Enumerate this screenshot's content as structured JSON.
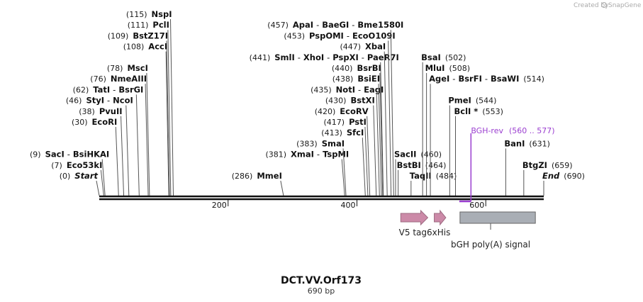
{
  "credit": {
    "text": "Created by",
    "brand": "SnapGene"
  },
  "map": {
    "name": "DCT.VV.Orf173",
    "length_label": "690 bp",
    "length": 690
  },
  "ticks": [
    {
      "label": "200",
      "pos": 200
    },
    {
      "label": "400",
      "pos": 400
    },
    {
      "label": "600",
      "pos": 600
    }
  ],
  "sites": [
    {
      "pos": 0,
      "row": 0,
      "parts": [
        {
          "t": "(0)",
          "c": "pos"
        },
        {
          "t": "Start",
          "c": "em"
        }
      ]
    },
    {
      "pos": 7,
      "row": 1,
      "parts": [
        {
          "t": "(7)",
          "c": "pos"
        },
        {
          "t": "Eco53kI",
          "c": "enz"
        }
      ]
    },
    {
      "pos": 9,
      "row": 2,
      "parts": [
        {
          "t": "(9)",
          "c": "pos"
        },
        {
          "t": "SacI",
          "c": "enz"
        },
        {
          "t": "-",
          "c": "sep"
        },
        {
          "t": "BsiHKAI",
          "c": "enz"
        }
      ]
    },
    {
      "pos": 30,
      "row": 5,
      "parts": [
        {
          "t": "(30)",
          "c": "pos"
        },
        {
          "t": "EcoRI",
          "c": "enz"
        }
      ]
    },
    {
      "pos": 38,
      "row": 6,
      "parts": [
        {
          "t": "(38)",
          "c": "pos"
        },
        {
          "t": "PvuII",
          "c": "enz"
        }
      ]
    },
    {
      "pos": 46,
      "row": 7,
      "parts": [
        {
          "t": "(46)",
          "c": "pos"
        },
        {
          "t": "StyI",
          "c": "enz"
        },
        {
          "t": "-",
          "c": "sep"
        },
        {
          "t": "NcoI",
          "c": "enz"
        }
      ]
    },
    {
      "pos": 62,
      "row": 8,
      "parts": [
        {
          "t": "(62)",
          "c": "pos"
        },
        {
          "t": "TatI",
          "c": "enz"
        },
        {
          "t": "-",
          "c": "sep"
        },
        {
          "t": "BsrGI",
          "c": "enz"
        }
      ]
    },
    {
      "pos": 76,
      "row": 9,
      "parts": [
        {
          "t": "(76)",
          "c": "pos"
        },
        {
          "t": "NmeAIII",
          "c": "enz"
        }
      ]
    },
    {
      "pos": 78,
      "row": 10,
      "parts": [
        {
          "t": "(78)",
          "c": "pos"
        },
        {
          "t": "MscI",
          "c": "enz"
        }
      ]
    },
    {
      "pos": 108,
      "row": 12,
      "parts": [
        {
          "t": "(108)",
          "c": "pos"
        },
        {
          "t": "AccI",
          "c": "enz"
        }
      ]
    },
    {
      "pos": 109,
      "row": 13,
      "parts": [
        {
          "t": "(109)",
          "c": "pos"
        },
        {
          "t": "BstZ17I",
          "c": "enz"
        }
      ]
    },
    {
      "pos": 111,
      "row": 14,
      "parts": [
        {
          "t": "(111)",
          "c": "pos"
        },
        {
          "t": "PclI",
          "c": "enz"
        }
      ]
    },
    {
      "pos": 115,
      "row": 15,
      "parts": [
        {
          "t": "(115)",
          "c": "pos"
        },
        {
          "t": "NspI",
          "c": "enz"
        }
      ]
    },
    {
      "pos": 286,
      "row": 0,
      "parts": [
        {
          "t": "(286)",
          "c": "pos"
        },
        {
          "t": "MmeI",
          "c": "enz"
        }
      ]
    },
    {
      "pos": 381,
      "row": 2,
      "parts": [
        {
          "t": "(381)",
          "c": "pos"
        },
        {
          "t": "XmaI",
          "c": "enz"
        },
        {
          "t": "-",
          "c": "sep"
        },
        {
          "t": "TspMI",
          "c": "enz"
        }
      ]
    },
    {
      "pos": 383,
      "row": 3,
      "parts": [
        {
          "t": "(383)",
          "c": "pos"
        },
        {
          "t": "SmaI",
          "c": "enz"
        }
      ]
    },
    {
      "pos": 413,
      "row": 4,
      "parts": [
        {
          "t": "(413)",
          "c": "pos"
        },
        {
          "t": "SfcI",
          "c": "enz"
        }
      ]
    },
    {
      "pos": 417,
      "row": 5,
      "parts": [
        {
          "t": "(417)",
          "c": "pos"
        },
        {
          "t": "PstI",
          "c": "enz"
        }
      ]
    },
    {
      "pos": 420,
      "row": 6,
      "parts": [
        {
          "t": "(420)",
          "c": "pos"
        },
        {
          "t": "EcoRV",
          "c": "enz"
        }
      ]
    },
    {
      "pos": 430,
      "row": 7,
      "parts": [
        {
          "t": "(430)",
          "c": "pos"
        },
        {
          "t": "BstXI",
          "c": "enz"
        }
      ]
    },
    {
      "pos": 435,
      "row": 8,
      "parts": [
        {
          "t": "(435)",
          "c": "pos"
        },
        {
          "t": "NotI",
          "c": "enz"
        },
        {
          "t": "-",
          "c": "sep"
        },
        {
          "t": "EagI",
          "c": "enz"
        }
      ]
    },
    {
      "pos": 438,
      "row": 9,
      "parts": [
        {
          "t": "(438)",
          "c": "pos"
        },
        {
          "t": "BsiEI",
          "c": "enz"
        }
      ]
    },
    {
      "pos": 440,
      "row": 10,
      "parts": [
        {
          "t": "(440)",
          "c": "pos"
        },
        {
          "t": "BsrBI",
          "c": "enz"
        }
      ]
    },
    {
      "pos": 441,
      "row": 11,
      "parts": [
        {
          "t": "(441)",
          "c": "pos"
        },
        {
          "t": "SmlI",
          "c": "enz"
        },
        {
          "t": "-",
          "c": "sep"
        },
        {
          "t": "XhoI",
          "c": "enz"
        },
        {
          "t": "-",
          "c": "sep"
        },
        {
          "t": "PspXI",
          "c": "enz"
        },
        {
          "t": "-",
          "c": "sep"
        },
        {
          "t": "PaeR7I",
          "c": "enz"
        }
      ]
    },
    {
      "pos": 447,
      "row": 12,
      "parts": [
        {
          "t": "(447)",
          "c": "pos"
        },
        {
          "t": "XbaI",
          "c": "enz"
        }
      ]
    },
    {
      "pos": 453,
      "row": 13,
      "parts": [
        {
          "t": "(453)",
          "c": "pos"
        },
        {
          "t": "PspOMI",
          "c": "enz"
        },
        {
          "t": "-",
          "c": "sep"
        },
        {
          "t": "EcoO109I",
          "c": "enz"
        }
      ]
    },
    {
      "pos": 457,
      "row": 14,
      "parts": [
        {
          "t": "(457)",
          "c": "pos"
        },
        {
          "t": "ApaI",
          "c": "enz"
        },
        {
          "t": "-",
          "c": "sep"
        },
        {
          "t": "BaeGI",
          "c": "enz"
        },
        {
          "t": "-",
          "c": "sep"
        },
        {
          "t": "Bme1580I",
          "c": "enz"
        }
      ]
    },
    {
      "pos": 484,
      "row": 0,
      "side": "right",
      "parts": [
        {
          "t": "TaqII",
          "c": "enz"
        },
        {
          "t": "(484)",
          "c": "pos"
        }
      ]
    },
    {
      "pos": 464,
      "row": 1,
      "side": "right",
      "parts": [
        {
          "t": "BstBI",
          "c": "enz"
        },
        {
          "t": "(464)",
          "c": "pos"
        }
      ]
    },
    {
      "pos": 460,
      "row": 2,
      "side": "right",
      "parts": [
        {
          "t": "SacII",
          "c": "enz"
        },
        {
          "t": "(460)",
          "c": "pos"
        }
      ]
    },
    {
      "pos": 553,
      "row": 6,
      "side": "right",
      "parts": [
        {
          "t": "BclI *",
          "c": "enz"
        },
        {
          "t": "(553)",
          "c": "pos"
        }
      ]
    },
    {
      "pos": 544,
      "row": 7,
      "side": "right",
      "parts": [
        {
          "t": "PmeI",
          "c": "enz"
        },
        {
          "t": "(544)",
          "c": "pos"
        }
      ]
    },
    {
      "pos": 514,
      "row": 9,
      "side": "right",
      "parts": [
        {
          "t": "AgeI",
          "c": "enz"
        },
        {
          "t": "-",
          "c": "sep"
        },
        {
          "t": "BsrFI",
          "c": "enz"
        },
        {
          "t": "-",
          "c": "sep"
        },
        {
          "t": "BsaWI",
          "c": "enz"
        },
        {
          "t": "(514)",
          "c": "pos"
        }
      ]
    },
    {
      "pos": 508,
      "row": 10,
      "side": "right",
      "parts": [
        {
          "t": "MluI",
          "c": "enz"
        },
        {
          "t": "(508)",
          "c": "pos"
        }
      ]
    },
    {
      "pos": 502,
      "row": 11,
      "side": "right",
      "parts": [
        {
          "t": "BsaI",
          "c": "enz"
        },
        {
          "t": "(502)",
          "c": "pos"
        }
      ]
    },
    {
      "pos": 690,
      "row": 0,
      "side": "right",
      "parts": [
        {
          "t": "End",
          "c": "em"
        },
        {
          "t": "(690)",
          "c": "pos"
        }
      ]
    },
    {
      "pos": 659,
      "row": 1,
      "side": "right",
      "parts": [
        {
          "t": "BtgZI",
          "c": "enz"
        },
        {
          "t": "(659)",
          "c": "pos"
        }
      ]
    },
    {
      "pos": 631,
      "row": 3,
      "side": "right",
      "parts": [
        {
          "t": "BanI",
          "c": "enz"
        },
        {
          "t": "(631)",
          "c": "pos"
        }
      ]
    }
  ],
  "primer": {
    "name": "BGH-rev",
    "range": "(560 .. 577)",
    "start": 560,
    "end": 577,
    "color": "#9b3fd0"
  },
  "features": [
    {
      "name": "V5 tag",
      "start": 468,
      "end": 510,
      "kind": "arrow",
      "color": "#cc8aa8"
    },
    {
      "name": "6xHis",
      "start": 520,
      "end": 538,
      "kind": "arrow",
      "color": "#cc8aa8"
    },
    {
      "name": "bGH poly(A) signal",
      "start": 560,
      "end": 677,
      "kind": "box",
      "color": "#a9aeb5"
    }
  ]
}
